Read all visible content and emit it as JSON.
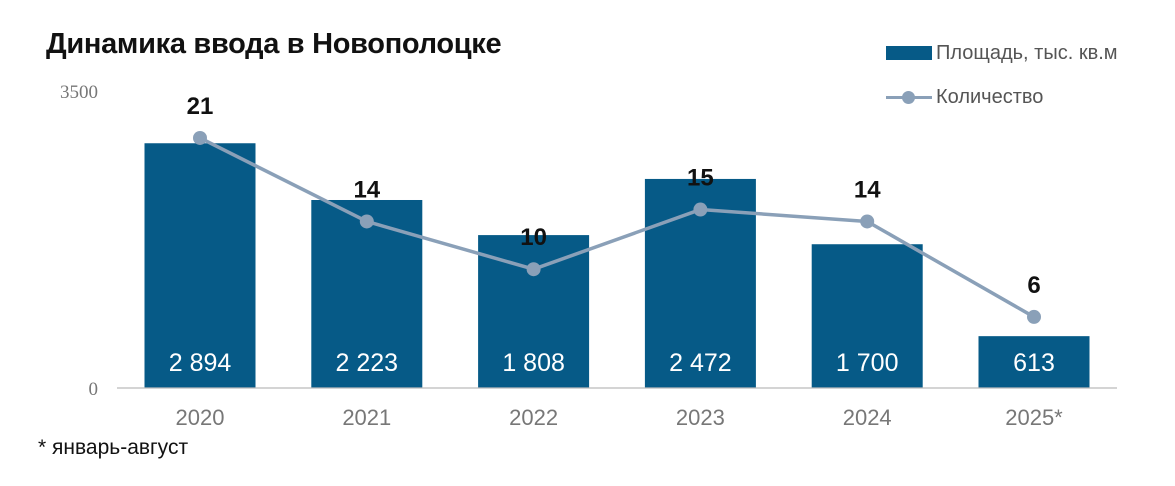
{
  "title": "Динамика ввода в Новополоцке",
  "legend": {
    "bar_label": "Площадь, тыс. кв.м",
    "line_label": "Количество"
  },
  "footnote": "* январь-август",
  "colors": {
    "bar": "#065a87",
    "line": "#8aa0b8",
    "axis": "#bbbbbb"
  },
  "chart_data": {
    "type": "bar",
    "title": "Динамика ввода в Новополоцке",
    "categories": [
      "2020",
      "2021",
      "2022",
      "2023",
      "2024",
      "2025*"
    ],
    "series": [
      {
        "name": "Площадь, тыс. кв.м",
        "type": "bar",
        "values": [
          2894,
          2223,
          1808,
          2472,
          1700,
          613
        ],
        "labels": [
          "2 894",
          "2 223",
          "1 808",
          "2 472",
          "1 700",
          "613"
        ]
      },
      {
        "name": "Количество",
        "type": "line",
        "values": [
          21,
          14,
          10,
          15,
          14,
          6
        ]
      }
    ],
    "yticks": [
      "0",
      "3500"
    ],
    "ylim": [
      0,
      3500
    ],
    "legend_position": "top-right",
    "grid": false
  }
}
